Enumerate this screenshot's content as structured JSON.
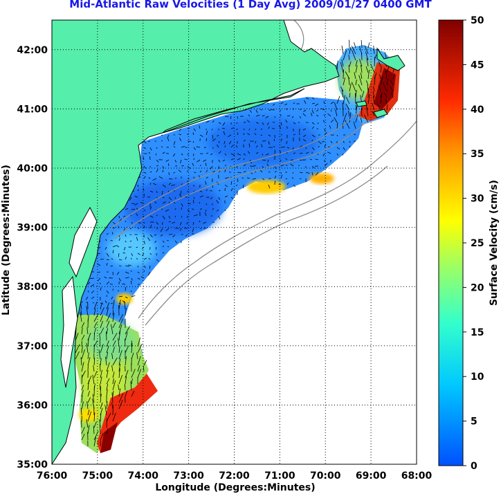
{
  "title": "Mid-Atlantic Raw Velocities (1 Day Avg) 2009/01/27 0400 GMT",
  "map": {
    "x_axis_label": "Longitude (Degrees:Minutes)",
    "y_axis_label": "Latitude (Degrees:Minutes)",
    "lon_ticks": [
      "76:00",
      "75:00",
      "74:00",
      "73:00",
      "72:00",
      "71:00",
      "70:00",
      "69:00",
      "68:00"
    ],
    "lat_ticks": [
      "42:00",
      "41:00",
      "40:00",
      "39:00",
      "38:00",
      "37:00",
      "36:00",
      "35:00"
    ],
    "lon_range": [
      -76,
      -68
    ],
    "lat_range": [
      35,
      42.5
    ],
    "grid": "dotted",
    "land_color": "#55eeaa",
    "coastline_color": "#000000",
    "bathymetry_color": "#888888",
    "vector_color": "#000000"
  },
  "colorbar": {
    "label": "Surface Velocity (cm/s)",
    "ticks": [
      "0",
      "5",
      "10",
      "15",
      "20",
      "25",
      "30",
      "35",
      "40",
      "45",
      "50"
    ],
    "range": [
      0,
      50
    ],
    "colormap": "jet"
  }
}
